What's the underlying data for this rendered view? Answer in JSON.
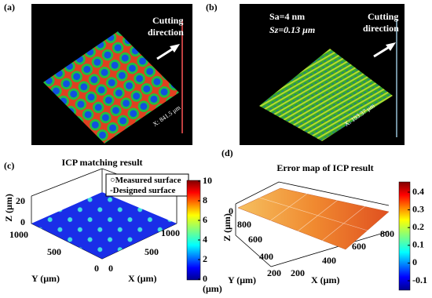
{
  "panels": [
    {
      "label": "(a)",
      "annotation": [
        "Cutting",
        "direction"
      ],
      "axis_label": "X: 841.5 μm"
    },
    {
      "label": "(b)",
      "stats": [
        "Sa=4 nm",
        "Sz=0.13 μm"
      ],
      "annotation": [
        "Cutting",
        "direction"
      ],
      "axis_label": "X: 193.37 μm"
    },
    {
      "label": "(c)",
      "title": "ICP matching result",
      "legend": [
        "Measured surface",
        "Designed surface"
      ],
      "z_label": "Z (μm)",
      "z_ticks": [
        "20",
        "0"
      ],
      "y_label": "Y (μm)",
      "y_ticks": [
        "1000",
        "500",
        "0"
      ],
      "x_label": "X (μm)",
      "x_ticks": [
        "0",
        "500",
        "1000"
      ],
      "colorbar_ticks": [
        "10",
        "8",
        "6",
        "4",
        "2",
        "0"
      ],
      "colorbar_unit": "(μm)"
    },
    {
      "label": "(d)",
      "title": "Error map of ICP result",
      "z_label": "Z (μm)",
      "z_ticks": [
        "0"
      ],
      "y_label": "Y (μm)",
      "y_ticks": [
        "800",
        "600",
        "400",
        "200"
      ],
      "x_label": "X (μm)",
      "x_ticks": [
        "200",
        "400",
        "600",
        "800"
      ],
      "colorbar_ticks": [
        "0.4",
        "0.3",
        "0.2",
        "0.1",
        "0",
        "-0.1"
      ]
    }
  ]
}
